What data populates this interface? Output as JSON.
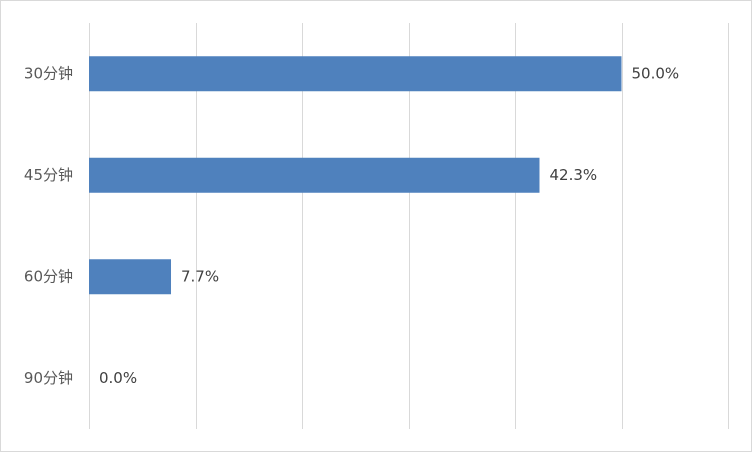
{
  "chart_data": {
    "type": "bar",
    "orientation": "horizontal",
    "categories": [
      "30分钟",
      "45分钟",
      "60分钟",
      "90分钟"
    ],
    "values": [
      50.0,
      42.3,
      7.7,
      0.0
    ],
    "value_labels": [
      "50.0%",
      "42.3%",
      "7.7%",
      "0.0%"
    ],
    "xlim": [
      0,
      60
    ],
    "grid": true,
    "legend": "none",
    "colors": {
      "bar": "#4F81BD",
      "grid": "#d9d9d9",
      "border": "#d9d9d9",
      "text": "#595959"
    }
  }
}
